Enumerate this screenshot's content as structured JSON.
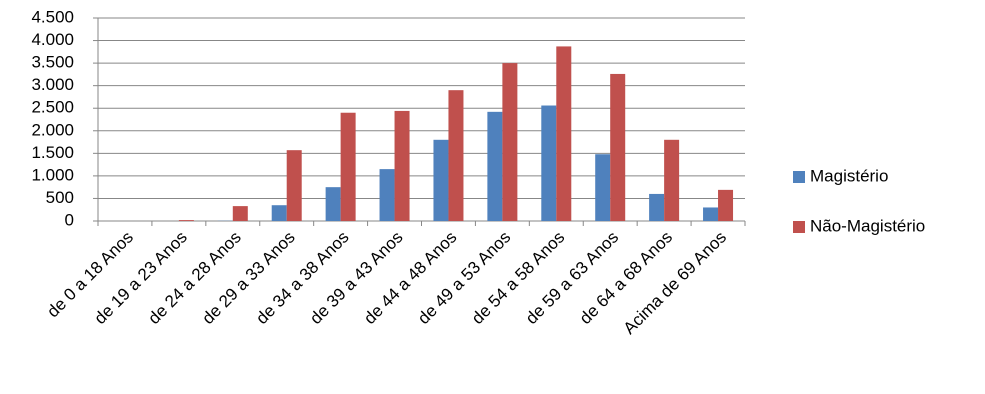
{
  "chart_data": {
    "type": "bar",
    "categories": [
      "de 0 a 18 Anos",
      "de 19 a 23 Anos",
      "de 24 a 28 Anos",
      "de 29 a 33 Anos",
      "de 34 a 38 Anos",
      "de 39 a 43 Anos",
      "de 44 a 48 Anos",
      "de 49 a 53 Anos",
      "de 54 a 58 Anos",
      "de 59 a 63 Anos",
      "de 64 a 68 Anos",
      "Acima de 69 Anos"
    ],
    "series": [
      {
        "name": "Magistério",
        "color": "#4f81bd",
        "values": [
          0,
          0,
          5,
          350,
          750,
          1150,
          1800,
          2420,
          2560,
          1480,
          600,
          300
        ]
      },
      {
        "name": "Não-Magistério",
        "color": "#c0504d",
        "values": [
          0,
          20,
          330,
          1570,
          2400,
          2440,
          2900,
          3500,
          3870,
          3260,
          1800,
          690
        ]
      }
    ],
    "ylim": [
      0,
      4500
    ],
    "yticks": [
      0,
      500,
      {
        "value": 1000,
        "label": "1.000"
      },
      {
        "value": 1500,
        "label": "1.500"
      },
      {
        "value": 2000,
        "label": "2.000"
      },
      {
        "value": 2500,
        "label": "2.500"
      },
      {
        "value": 3000,
        "label": "3.000"
      },
      {
        "value": 3500,
        "label": "3.500"
      },
      {
        "value": 4000,
        "label": "4.000"
      },
      {
        "value": 4500,
        "label": "4.500"
      }
    ],
    "grid": true,
    "legend": "right"
  }
}
